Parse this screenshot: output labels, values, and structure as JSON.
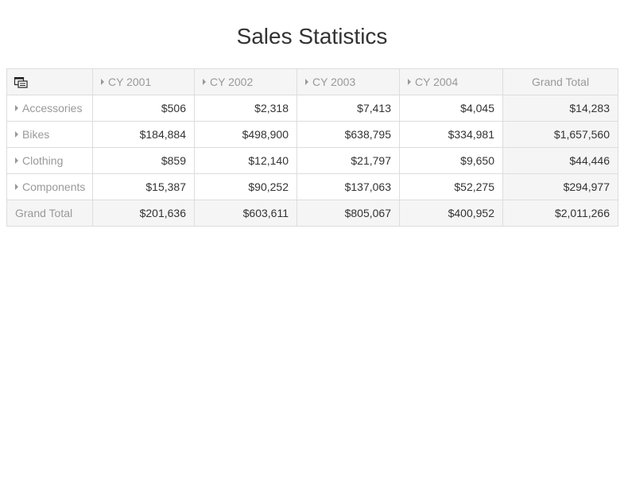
{
  "title": "Sales Statistics",
  "pivot": {
    "corner_icon": "field-chooser-icon",
    "columns": [
      "CY 2001",
      "CY 2002",
      "CY 2003",
      "CY 2004"
    ],
    "grand_total_label": "Grand Total",
    "rows": [
      {
        "label": "Accessories",
        "values": [
          "$506",
          "$2,318",
          "$7,413",
          "$4,045"
        ],
        "total": "$14,283"
      },
      {
        "label": "Bikes",
        "values": [
          "$184,884",
          "$498,900",
          "$638,795",
          "$334,981"
        ],
        "total": "$1,657,560"
      },
      {
        "label": "Clothing",
        "values": [
          "$859",
          "$12,140",
          "$21,797",
          "$9,650"
        ],
        "total": "$44,446"
      },
      {
        "label": "Components",
        "values": [
          "$15,387",
          "$90,252",
          "$137,063",
          "$52,275"
        ],
        "total": "$294,977"
      }
    ],
    "grand_total_row": {
      "label": "Grand Total",
      "values": [
        "$201,636",
        "$603,611",
        "$805,067",
        "$400,952"
      ],
      "total": "$2,011,266"
    }
  },
  "colors": {
    "header_bg": "#f5f5f5",
    "border": "#dddddd",
    "muted_text": "#999999",
    "value_text": "#333333"
  }
}
